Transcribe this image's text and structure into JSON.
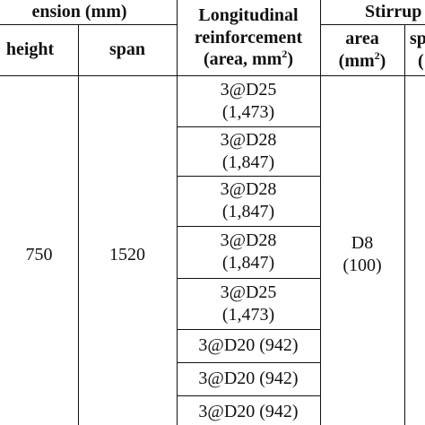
{
  "header": {
    "dimension": "ension (mm)",
    "height": "height",
    "span": "span",
    "longitudinal_line1": "Longitudinal",
    "longitudinal_line2": "reinforcement",
    "longitudinal_line3_pre": "(area, mm",
    "longitudinal_line3_sup": "2",
    "longitudinal_line3_post": ")",
    "stirrup": "Stirrup",
    "stirrup_area_line1": "area",
    "stirrup_area_line2_pre": "(mm",
    "stirrup_area_line2_sup": "2",
    "stirrup_area_line2_post": ")",
    "stirrup_spacing_line1": "sp",
    "stirrup_spacing_line2": "("
  },
  "body": {
    "height_value": "750",
    "span_value": "1520",
    "stirrup_area_value_line1": "D8",
    "stirrup_area_value_line2": "(100)",
    "reinforcement": [
      {
        "line1": "3@D25",
        "line2": "(1,473)"
      },
      {
        "line1": "3@D28",
        "line2": "(1,847)"
      },
      {
        "line1": "3@D28",
        "line2": "(1,847)"
      },
      {
        "line1": "3@D28",
        "line2": "(1,847)"
      },
      {
        "line1": "3@D25",
        "line2": "(1,473)"
      },
      {
        "line1": "3@D20 (942)",
        "line2": ""
      },
      {
        "line1": "3@D20 (942)",
        "line2": ""
      },
      {
        "line1": "3@D20 (942)",
        "line2": ""
      }
    ]
  }
}
